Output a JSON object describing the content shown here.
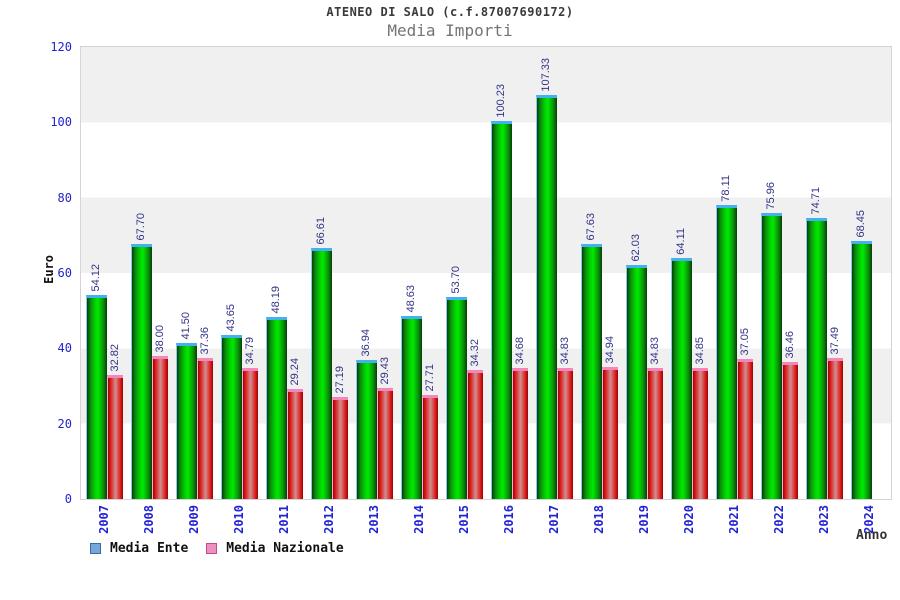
{
  "header": {
    "title": "ATENEO DI SALO (c.f.87007690172)",
    "subtitle": "Media Importi"
  },
  "chart_data": {
    "type": "bar",
    "title": "ATENEO DI SALO (c.f.87007690172)",
    "subtitle": "Media Importi",
    "xlabel": "Anno",
    "ylabel": "Euro",
    "ylim": [
      0,
      120
    ],
    "yticks": [
      0,
      20,
      40,
      60,
      80,
      100,
      120
    ],
    "grid": "alternating-horizontal-bands",
    "legend_position": "bottom-left",
    "categories": [
      "2007",
      "2008",
      "2009",
      "2010",
      "2011",
      "2012",
      "2013",
      "2014",
      "2015",
      "2016",
      "2017",
      "2018",
      "2019",
      "2020",
      "2021",
      "2022",
      "2023",
      "2024"
    ],
    "series": [
      {
        "name": "Media Ente",
        "bar_color": "#00cc00",
        "legend_color": "#74a7dc",
        "values": [
          54.12,
          67.7,
          41.5,
          43.65,
          48.19,
          66.61,
          36.94,
          48.63,
          53.7,
          100.23,
          107.33,
          67.63,
          62.03,
          64.11,
          78.11,
          75.96,
          74.71,
          68.45
        ]
      },
      {
        "name": "Media Nazionale",
        "bar_color": "#dd2222",
        "legend_color": "#ee8fc0",
        "values": [
          32.82,
          38.0,
          37.36,
          34.79,
          29.24,
          27.19,
          29.43,
          27.71,
          34.32,
          34.68,
          34.83,
          34.94,
          34.83,
          34.85,
          37.05,
          36.46,
          37.49,
          null
        ]
      }
    ],
    "colors": {
      "band_gray": "#f0f0f0",
      "band_white": "#ffffff",
      "axis_tick_text": "#2323cf",
      "value_label_text": "#333388",
      "plot_border": "#d4d4d4"
    }
  }
}
